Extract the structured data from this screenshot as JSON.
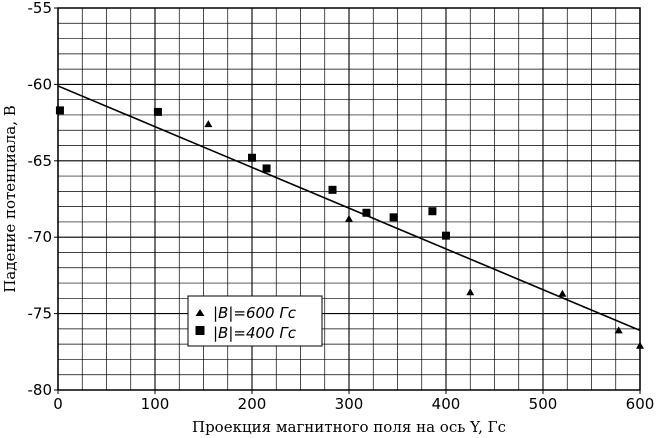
{
  "chart_data": {
    "type": "scatter",
    "xlabel": "Проекция магнитного поля на ось Y, Гс",
    "ylabel": "Падение потенциала, В",
    "xlim": [
      0,
      600
    ],
    "ylim": [
      -80,
      -55
    ],
    "x_ticks": [
      0,
      100,
      200,
      300,
      400,
      500,
      600
    ],
    "y_ticks": [
      -55,
      -60,
      -65,
      -70,
      -75,
      -80
    ],
    "x_tick_labels": [
      "0",
      "100",
      "200",
      "300",
      "400",
      "500",
      "600"
    ],
    "y_tick_labels": [
      "-55",
      "-60",
      "-65",
      "-70",
      "-75",
      "-80"
    ],
    "grid": true,
    "legend_position": "bottom-left",
    "series": [
      {
        "name": "|B|=600 Гс",
        "marker": "triangle",
        "points": [
          {
            "x": 155,
            "y": -62.6
          },
          {
            "x": 300,
            "y": -68.8
          },
          {
            "x": 425,
            "y": -73.6
          },
          {
            "x": 520,
            "y": -73.7
          },
          {
            "x": 578,
            "y": -76.1
          },
          {
            "x": 600,
            "y": -77.1
          }
        ]
      },
      {
        "name": "|B|=400 Гс",
        "marker": "square",
        "points": [
          {
            "x": 2,
            "y": -61.7
          },
          {
            "x": 103,
            "y": -61.8
          },
          {
            "x": 200,
            "y": -64.8
          },
          {
            "x": 215,
            "y": -65.5
          },
          {
            "x": 283,
            "y": -66.9
          },
          {
            "x": 318,
            "y": -68.4
          },
          {
            "x": 346,
            "y": -68.7
          },
          {
            "x": 386,
            "y": -68.3
          },
          {
            "x": 400,
            "y": -69.9
          }
        ]
      }
    ],
    "fit_line": {
      "x": [
        0,
        600
      ],
      "y": [
        -60.1,
        -76.1
      ]
    }
  }
}
